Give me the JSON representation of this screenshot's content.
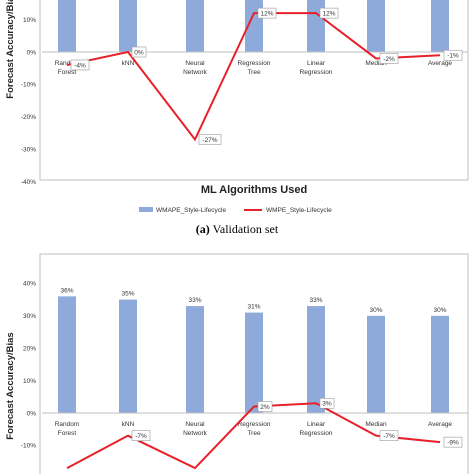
{
  "chart_data": [
    {
      "type": "bar",
      "ylabel": "Forecast Accuracy/Bias",
      "xlabel": "ML Algorithms Used",
      "caption_letter": "(a)",
      "caption_text": "Validation set",
      "categories": [
        [
          "Random",
          "Forest"
        ],
        [
          "kNN"
        ],
        [
          "Neural",
          "Network"
        ],
        [
          "Regression",
          "Tree"
        ],
        [
          "Linear",
          "Regression"
        ],
        [
          "Median"
        ],
        [
          "Average"
        ]
      ],
      "series": [
        {
          "name": "WMAPE_Style-Lifecycle",
          "kind": "bar",
          "color": "#8eaadb",
          "values": [
            null,
            null,
            null,
            null,
            null,
            null,
            null
          ]
        },
        {
          "name": "WMPE_Style-Lifecycle",
          "kind": "line",
          "color": "#e8202a",
          "values": [
            -4,
            0,
            -27,
            12,
            12,
            -2,
            -1
          ],
          "labels": [
            "-4%",
            "0%",
            "-27%",
            "12%",
            "12%",
            "-2%",
            "-1%"
          ]
        }
      ],
      "yticks": [
        "10%",
        "0%",
        "-10%",
        "-20%",
        "-30%",
        "-40%"
      ],
      "ytick_values": [
        10,
        0,
        -10,
        -20,
        -30,
        -40
      ],
      "ylim": [
        -40,
        20
      ],
      "grid": false,
      "legend_position": "bottom"
    },
    {
      "type": "bar",
      "ylabel": "Forecast Accuracy/Bias",
      "categories": [
        [
          "Random",
          "Forest"
        ],
        [
          "kNN"
        ],
        [
          "Neural",
          "Network"
        ],
        [
          "Regression",
          "Tree"
        ],
        [
          "Linear",
          "Regression"
        ],
        [
          "Median"
        ],
        [
          "Average"
        ]
      ],
      "series": [
        {
          "name": "WMAPE_Style-Lifecycle",
          "kind": "bar",
          "color": "#8eaadb",
          "values": [
            36,
            35,
            33,
            31,
            33,
            30,
            30
          ],
          "labels": [
            "36%",
            "35%",
            "33%",
            "31%",
            "33%",
            "30%",
            "30%"
          ]
        },
        {
          "name": "WMPE_Style-Lifecycle",
          "kind": "line",
          "color": "#e8202a",
          "values": [
            -17,
            -7,
            -17,
            2,
            3,
            -7,
            -9
          ],
          "labels": [
            "",
            "-7%",
            "",
            "2%",
            "3%",
            "-7%",
            "-9%"
          ]
        }
      ],
      "yticks": [
        "40%",
        "30%",
        "20%",
        "10%",
        "0%",
        "-10%"
      ],
      "ytick_values": [
        40,
        30,
        20,
        10,
        0,
        -10
      ],
      "ylim": [
        -20,
        40
      ],
      "grid": false
    }
  ]
}
